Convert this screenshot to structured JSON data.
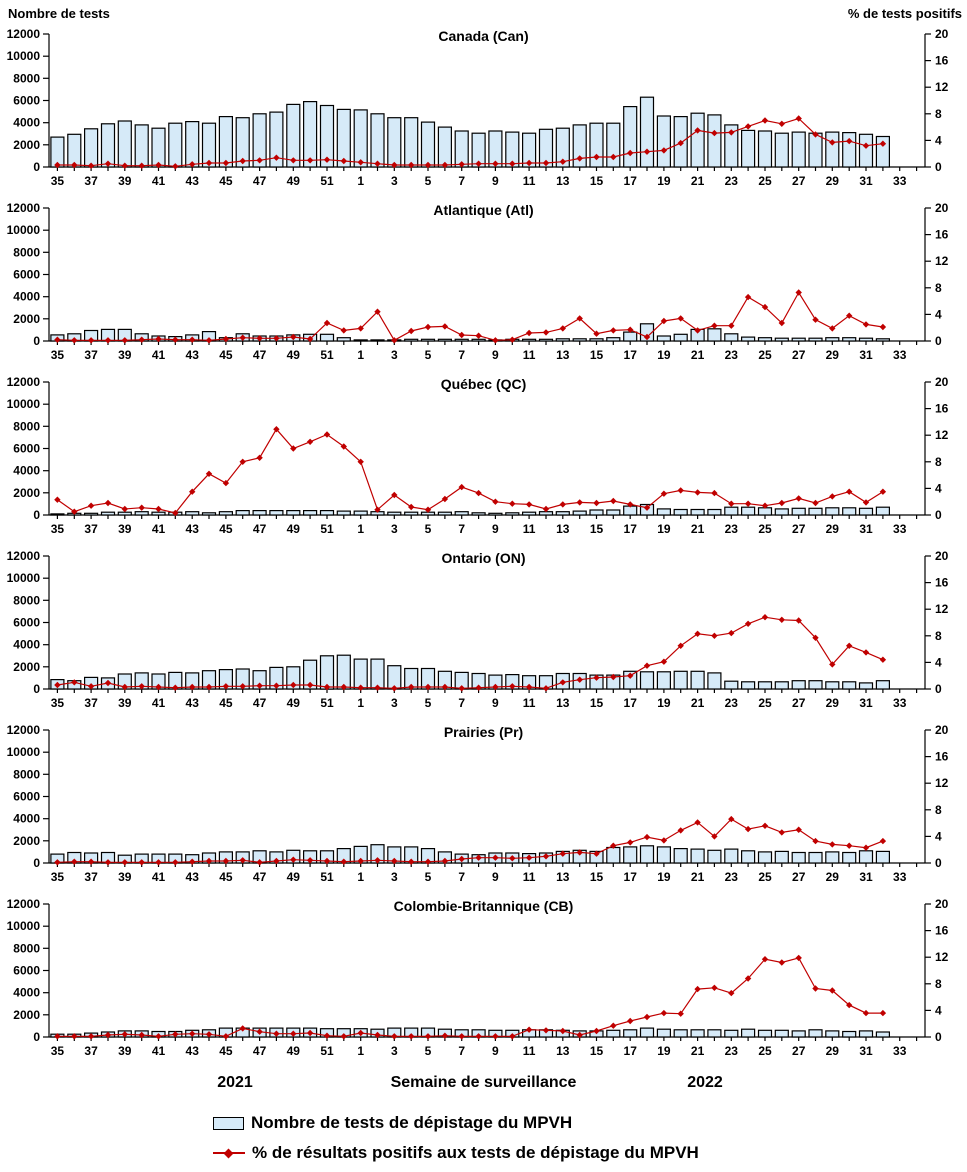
{
  "page": {
    "left_axis_title": "Nombre de tests",
    "right_axis_title": "% de tests positifs",
    "x_axis_title": "Semaine de surveillance",
    "year_left": "2021",
    "year_right": "2022",
    "legend": {
      "bars_label": "Nombre de tests de dépistage du MPVH",
      "line_label": "% de résultats positifs aux tests de dépistage du MPVH"
    },
    "colors": {
      "bar_fill": "#D6EAF8",
      "bar_stroke": "#000000",
      "line": "#C00000",
      "text": "#000000"
    }
  },
  "chart_data": {
    "type": "bar+line",
    "xlabel": "Semaine de surveillance",
    "ylabel_left": "Nombre de tests",
    "ylabel_right": "% de tests positifs",
    "ylim_left": [
      0,
      12000
    ],
    "yticks_left": [
      0,
      2000,
      4000,
      6000,
      8000,
      10000,
      12000
    ],
    "ylim_right": [
      0,
      20
    ],
    "yticks_right": [
      0,
      4,
      8,
      12,
      16,
      20
    ],
    "x_tick_labels": [
      "35",
      "37",
      "39",
      "41",
      "43",
      "45",
      "47",
      "49",
      "51",
      "1",
      "3",
      "5",
      "7",
      "9",
      "11",
      "13",
      "15",
      "17",
      "19",
      "21",
      "23",
      "25",
      "27",
      "29",
      "31",
      "33"
    ],
    "weeks": [
      35,
      36,
      37,
      38,
      39,
      40,
      41,
      42,
      43,
      44,
      45,
      46,
      47,
      48,
      49,
      50,
      51,
      52,
      1,
      2,
      3,
      4,
      5,
      6,
      7,
      8,
      9,
      10,
      11,
      12,
      13,
      14,
      15,
      16,
      17,
      18,
      19,
      20,
      21,
      22,
      23,
      24,
      25,
      26,
      27,
      28,
      29,
      30,
      31,
      32
    ],
    "charts": [
      {
        "title": "Canada (Can)",
        "bars": [
          2700,
          2950,
          3450,
          3900,
          4150,
          3800,
          3500,
          3950,
          4100,
          3950,
          4550,
          4450,
          4800,
          4950,
          5650,
          5900,
          5550,
          5200,
          5150,
          4800,
          4450,
          4450,
          4050,
          3600,
          3250,
          3050,
          3250,
          3150,
          3050,
          3400,
          3500,
          3800,
          3950,
          3950,
          5450,
          6300,
          4600,
          4550,
          4850,
          4700,
          3800,
          3300,
          3250,
          3050,
          3150,
          3050,
          3150,
          3100,
          2950,
          2750
        ],
        "line": [
          0.3,
          0.3,
          0.2,
          0.5,
          0.2,
          0.2,
          0.3,
          0.1,
          0.4,
          0.6,
          0.6,
          0.9,
          1.0,
          1.4,
          1.0,
          1.0,
          1.1,
          0.9,
          0.7,
          0.5,
          0.3,
          0.3,
          0.3,
          0.3,
          0.4,
          0.5,
          0.5,
          0.5,
          0.6,
          0.6,
          0.8,
          1.3,
          1.5,
          1.5,
          2.1,
          2.3,
          2.5,
          3.6,
          5.5,
          5.1,
          5.2,
          6.1,
          7.0,
          6.5,
          7.3,
          4.9,
          3.7,
          3.9,
          3.2,
          3.5
        ]
      },
      {
        "title": "Atlantique (Atl)",
        "bars": [
          550,
          650,
          950,
          1050,
          1050,
          650,
          450,
          400,
          550,
          850,
          300,
          650,
          450,
          450,
          550,
          600,
          600,
          300,
          100,
          100,
          100,
          150,
          150,
          150,
          150,
          150,
          100,
          150,
          150,
          150,
          200,
          200,
          200,
          300,
          800,
          1550,
          450,
          600,
          1050,
          1100,
          650,
          350,
          300,
          250,
          250,
          250,
          300,
          300,
          250,
          200
        ],
        "line": [
          0.2,
          0.1,
          0.1,
          0.1,
          0.1,
          0.2,
          0.3,
          0.2,
          0.2,
          0.1,
          0.3,
          0.5,
          0.4,
          0.4,
          0.6,
          0.3,
          2.7,
          1.6,
          1.9,
          4.4,
          0.1,
          1.5,
          2.1,
          2.2,
          0.9,
          0.8,
          0.1,
          0.2,
          1.2,
          1.3,
          1.9,
          3.4,
          1.1,
          1.6,
          1.7,
          0.6,
          3.0,
          3.4,
          1.6,
          2.3,
          2.3,
          6.6,
          5.1,
          2.7,
          7.3,
          3.2,
          1.9,
          3.8,
          2.5,
          2.1
        ]
      },
      {
        "title": "Québec (QC)",
        "bars": [
          100,
          150,
          150,
          250,
          250,
          300,
          250,
          250,
          300,
          200,
          300,
          400,
          400,
          400,
          400,
          400,
          400,
          350,
          350,
          300,
          250,
          250,
          250,
          250,
          300,
          200,
          150,
          200,
          250,
          300,
          300,
          350,
          450,
          450,
          800,
          950,
          550,
          500,
          500,
          500,
          700,
          700,
          650,
          550,
          600,
          600,
          650,
          650,
          600,
          700
        ],
        "line": [
          2.3,
          0.5,
          1.4,
          1.8,
          0.9,
          1.1,
          0.9,
          0.3,
          3.5,
          6.2,
          4.8,
          8.0,
          8.6,
          12.9,
          10.0,
          11.0,
          12.1,
          10.3,
          8.0,
          0.8,
          3.0,
          1.2,
          0.8,
          2.4,
          4.2,
          3.3,
          2.0,
          1.7,
          1.6,
          0.9,
          1.6,
          1.9,
          1.8,
          2.1,
          1.6,
          1.1,
          3.2,
          3.7,
          3.4,
          3.3,
          1.7,
          1.7,
          1.4,
          1.8,
          2.5,
          1.8,
          2.8,
          3.5,
          1.9,
          3.5
        ]
      },
      {
        "title": "Ontario (ON)",
        "bars": [
          850,
          750,
          1050,
          1000,
          1350,
          1450,
          1350,
          1500,
          1450,
          1650,
          1750,
          1800,
          1650,
          1950,
          2000,
          2600,
          3000,
          3050,
          2700,
          2700,
          2100,
          1850,
          1850,
          1600,
          1500,
          1400,
          1250,
          1300,
          1200,
          1200,
          1400,
          1400,
          1250,
          1250,
          1600,
          1550,
          1550,
          1600,
          1600,
          1450,
          700,
          650,
          650,
          650,
          750,
          750,
          650,
          650,
          550,
          750
        ],
        "line": [
          0.6,
          1.0,
          0.4,
          0.9,
          0.3,
          0.4,
          0.3,
          0.2,
          0.3,
          0.3,
          0.4,
          0.4,
          0.5,
          0.5,
          0.6,
          0.6,
          0.3,
          0.3,
          0.2,
          0.2,
          0.1,
          0.3,
          0.3,
          0.3,
          0.1,
          0.2,
          0.3,
          0.4,
          0.3,
          0.1,
          1.0,
          1.4,
          1.7,
          1.8,
          2.0,
          3.5,
          4.1,
          6.5,
          8.3,
          8.0,
          8.4,
          9.8,
          10.8,
          10.4,
          10.3,
          7.7,
          3.7,
          6.5,
          5.5,
          4.4
        ]
      },
      {
        "title": "Prairies (Pr)",
        "bars": [
          800,
          950,
          900,
          950,
          700,
          800,
          800,
          800,
          750,
          900,
          1000,
          1000,
          1100,
          1000,
          1150,
          1100,
          1100,
          1300,
          1500,
          1650,
          1450,
          1450,
          1300,
          1000,
          800,
          750,
          900,
          900,
          850,
          900,
          1050,
          1150,
          1050,
          1400,
          1450,
          1550,
          1450,
          1300,
          1250,
          1150,
          1250,
          1100,
          1000,
          1050,
          950,
          950,
          1000,
          950,
          1100,
          1050
        ],
        "line": [
          0.1,
          0.2,
          0.2,
          0.1,
          0.1,
          0.1,
          0.1,
          0.1,
          0.2,
          0.3,
          0.3,
          0.4,
          0.1,
          0.3,
          0.5,
          0.4,
          0.3,
          0.2,
          0.3,
          0.4,
          0.3,
          0.2,
          0.2,
          0.3,
          0.6,
          0.8,
          0.8,
          0.7,
          0.8,
          1.0,
          1.4,
          1.6,
          1.4,
          2.6,
          3.1,
          3.9,
          3.4,
          4.9,
          6.1,
          4.0,
          6.6,
          5.1,
          5.6,
          4.6,
          5.0,
          3.3,
          2.8,
          2.6,
          2.3,
          3.3
        ]
      },
      {
        "title": "Colombie-Britannique (CB)",
        "bars": [
          250,
          250,
          350,
          450,
          550,
          550,
          500,
          500,
          600,
          650,
          800,
          800,
          800,
          800,
          800,
          800,
          750,
          750,
          750,
          700,
          800,
          800,
          800,
          700,
          650,
          650,
          600,
          600,
          650,
          650,
          600,
          550,
          550,
          600,
          650,
          800,
          700,
          650,
          650,
          650,
          600,
          700,
          600,
          600,
          550,
          650,
          550,
          500,
          550,
          450
        ],
        "line": [
          0.1,
          0.1,
          0.1,
          0.3,
          0.4,
          0.3,
          0.1,
          0.4,
          0.5,
          0.4,
          0.1,
          1.3,
          0.8,
          0.5,
          0.5,
          0.6,
          0.2,
          0.1,
          0.6,
          0.3,
          0.1,
          0.1,
          0.1,
          0.2,
          0.1,
          0.1,
          0.1,
          0.1,
          1.1,
          1.0,
          0.9,
          0.3,
          0.9,
          1.7,
          2.4,
          3.0,
          3.6,
          3.5,
          7.2,
          7.4,
          6.6,
          8.8,
          11.7,
          11.2,
          11.9,
          7.3,
          7.0,
          4.8,
          3.6,
          3.6
        ]
      }
    ]
  }
}
